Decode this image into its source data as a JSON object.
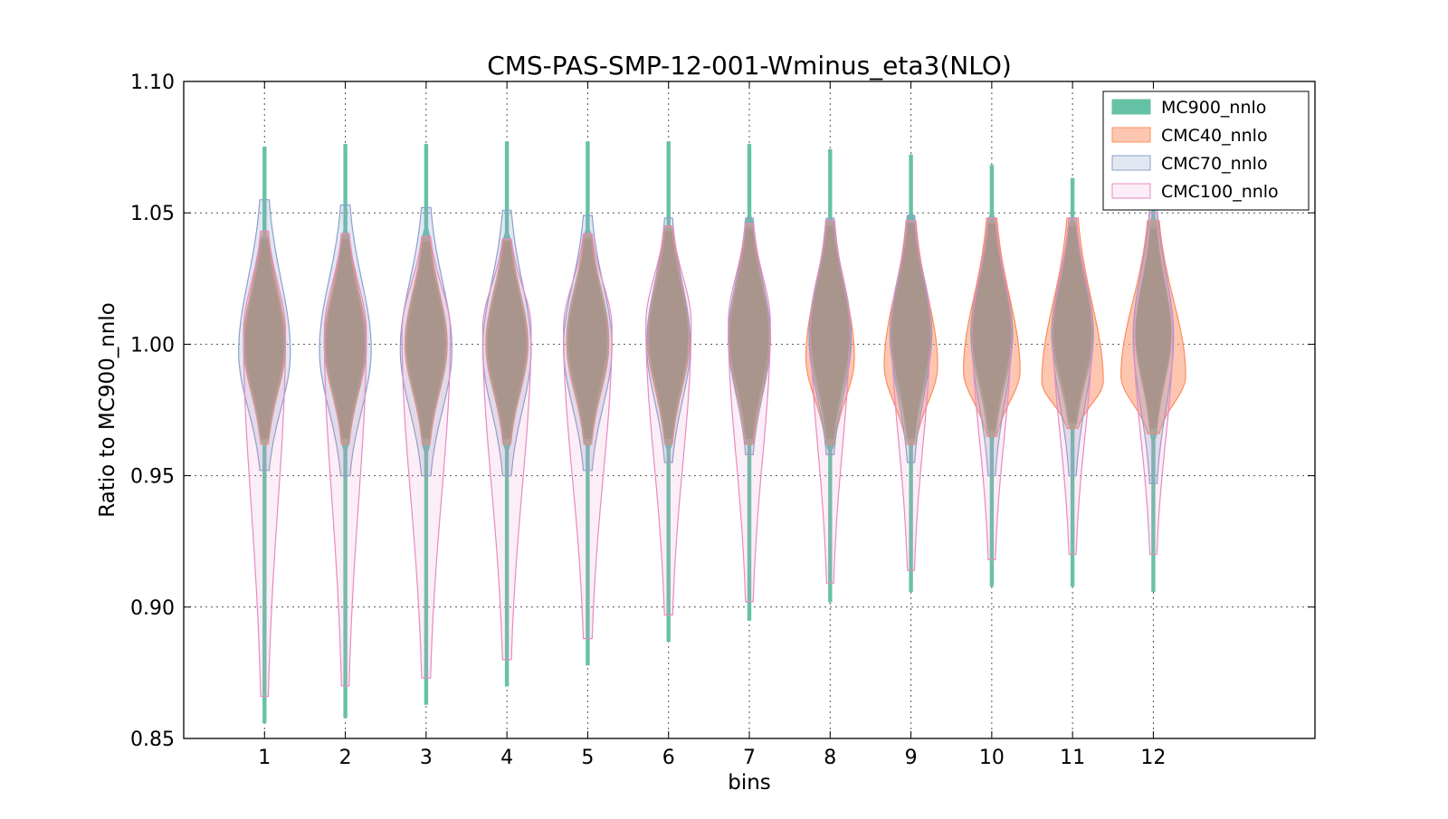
{
  "chart_data": {
    "type": "violin",
    "title": "CMS-PAS-SMP-12-001-Wminus_eta3(NLO)",
    "xlabel": "bins",
    "ylabel": "Ratio to MC900_nnlo",
    "xlim": [
      0,
      14
    ],
    "ylim": [
      0.85,
      1.1
    ],
    "xticks": [
      "1",
      "2",
      "3",
      "4",
      "5",
      "6",
      "7",
      "8",
      "9",
      "10",
      "11",
      "12"
    ],
    "yticks": [
      "0.85",
      "0.90",
      "0.95",
      "1.00",
      "1.05",
      "1.10"
    ],
    "grid": true,
    "legend_position": "top-right",
    "series": [
      {
        "name": "MC900_nnlo",
        "fill": "#66c2a5",
        "edge": "#66c2a5",
        "opacity": 1.0,
        "fill_opacity": 1.0,
        "min": [
          0.856,
          0.858,
          0.863,
          0.87,
          0.878,
          0.887,
          0.895,
          0.902,
          0.906,
          0.908,
          0.908,
          0.906
        ],
        "max": [
          1.075,
          1.076,
          1.076,
          1.077,
          1.077,
          1.077,
          1.076,
          1.074,
          1.072,
          1.068,
          1.063,
          1.056
        ],
        "q_low": [
          0.962,
          0.962,
          0.962,
          0.962,
          0.962,
          0.962,
          0.962,
          0.962,
          0.962,
          0.965,
          0.968,
          0.966
        ],
        "q_high": [
          1.042,
          1.042,
          1.041,
          1.041,
          1.042,
          1.045,
          1.046,
          1.047,
          1.048,
          1.048,
          1.047,
          1.046
        ],
        "center": [
          1.0,
          1.0,
          1.0,
          1.0,
          1.002,
          1.003,
          1.003,
          1.004,
          1.004,
          1.004,
          1.004,
          1.004
        ],
        "width": [
          0.26,
          0.26,
          0.26,
          0.26,
          0.26,
          0.26,
          0.26,
          0.26,
          0.26,
          0.26,
          0.26,
          0.22
        ]
      },
      {
        "name": "CMC40_nnlo",
        "fill": "#fc8d62",
        "edge": "#fc8d62",
        "fill_opacity": 0.5,
        "min": [
          0.962,
          0.962,
          0.962,
          0.962,
          0.962,
          0.962,
          0.962,
          0.962,
          0.962,
          0.965,
          0.968,
          0.966
        ],
        "max": [
          1.043,
          1.042,
          1.041,
          1.04,
          1.042,
          1.045,
          1.046,
          1.047,
          1.047,
          1.048,
          1.048,
          1.047
        ],
        "center": [
          1.0,
          1.0,
          1.0,
          1.0,
          1.0,
          1.002,
          1.002,
          0.995,
          0.992,
          0.99,
          0.986,
          0.988
        ],
        "width": [
          0.26,
          0.26,
          0.26,
          0.26,
          0.26,
          0.26,
          0.26,
          0.3,
          0.33,
          0.35,
          0.38,
          0.4
        ]
      },
      {
        "name": "CMC70_nnlo",
        "fill": "#8da0cb",
        "edge": "#8da0cb",
        "fill_opacity": 0.25,
        "min": [
          0.952,
          0.95,
          0.95,
          0.95,
          0.952,
          0.955,
          0.958,
          0.958,
          0.955,
          0.95,
          0.95,
          0.947
        ],
        "max": [
          1.055,
          1.053,
          1.052,
          1.051,
          1.049,
          1.048,
          1.048,
          1.048,
          1.049,
          1.048,
          1.048,
          1.052
        ],
        "center": [
          0.997,
          0.998,
          0.998,
          0.998,
          0.999,
          1.0,
          1.002,
          1.002,
          1.003,
          1.003,
          1.003,
          1.003
        ],
        "width": [
          0.32,
          0.32,
          0.32,
          0.3,
          0.3,
          0.27,
          0.26,
          0.26,
          0.25,
          0.25,
          0.25,
          0.25
        ]
      },
      {
        "name": "CMC100_nnlo",
        "fill": "#e78ac3",
        "edge": "#e78ac3",
        "fill_opacity": 0.15,
        "min": [
          0.866,
          0.87,
          0.873,
          0.88,
          0.888,
          0.897,
          0.902,
          0.909,
          0.914,
          0.918,
          0.92,
          0.92
        ],
        "max": [
          1.043,
          1.042,
          1.041,
          1.04,
          1.042,
          1.045,
          1.046,
          1.047,
          1.047,
          1.048,
          1.048,
          1.05
        ],
        "center": [
          1.005,
          1.005,
          1.005,
          1.006,
          1.006,
          1.008,
          1.008,
          1.008,
          1.008,
          1.006,
          1.006,
          1.004
        ],
        "width": [
          0.26,
          0.26,
          0.3,
          0.3,
          0.3,
          0.28,
          0.26,
          0.24,
          0.24,
          0.24,
          0.24,
          0.24
        ]
      }
    ]
  }
}
